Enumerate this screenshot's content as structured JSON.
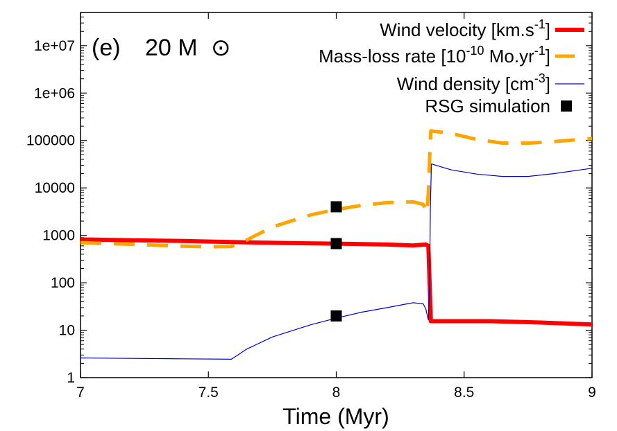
{
  "chart_data": {
    "type": "line",
    "panel_label": "(e)",
    "panel_mass": "20 M",
    "panel_symbol": "⊙",
    "xlabel": "Time (Myr)",
    "ylabel": "",
    "xlim": [
      7,
      9
    ],
    "ylim": [
      1,
      50000000
    ],
    "yscale": "log",
    "grid": false,
    "legend_position": "top-right",
    "x_ticks": [
      "7",
      "7.5",
      "8",
      "8.5",
      "9"
    ],
    "y_ticks": [
      "1",
      "10",
      "100",
      "1000",
      "10000",
      "100000",
      "1e+06",
      "1e+07"
    ],
    "series": [
      {
        "name": "Wind velocity [km.s-1]",
        "legend_main": "Wind velocity [km.s",
        "legend_sup": "-1",
        "legend_tail": "]",
        "color": "#ff0000",
        "style": "solid-thick",
        "points": [
          [
            7.0,
            820
          ],
          [
            7.2,
            790
          ],
          [
            7.4,
            760
          ],
          [
            7.6,
            720
          ],
          [
            7.8,
            690
          ],
          [
            8.0,
            670
          ],
          [
            8.2,
            640
          ],
          [
            8.3,
            610
          ],
          [
            8.35,
            640
          ],
          [
            8.36,
            600
          ],
          [
            8.365,
            100
          ],
          [
            8.37,
            15.5
          ],
          [
            8.4,
            15.5
          ],
          [
            8.6,
            15.5
          ],
          [
            8.8,
            14.5
          ],
          [
            9.0,
            13.2
          ]
        ]
      },
      {
        "name": "Mass-loss rate [10-10 Mo.yr-1]",
        "legend_main": "Mass-loss rate [10",
        "legend_sup": "-10",
        "legend_mid": " Mo.yr",
        "legend_sup2": "-1",
        "legend_tail": "]",
        "color": "#ffa500",
        "style": "dashed",
        "points": [
          [
            7.0,
            700
          ],
          [
            7.2,
            650
          ],
          [
            7.4,
            590
          ],
          [
            7.5,
            575
          ],
          [
            7.59,
            580
          ],
          [
            7.65,
            800
          ],
          [
            7.75,
            1500
          ],
          [
            7.9,
            2700
          ],
          [
            8.0,
            3500
          ],
          [
            8.1,
            4300
          ],
          [
            8.2,
            4900
          ],
          [
            8.3,
            5100
          ],
          [
            8.34,
            4500
          ],
          [
            8.355,
            3000
          ],
          [
            8.36,
            8000
          ],
          [
            8.365,
            40000
          ],
          [
            8.37,
            160000
          ],
          [
            8.45,
            140000
          ],
          [
            8.55,
            105000
          ],
          [
            8.65,
            88000
          ],
          [
            8.75,
            88000
          ],
          [
            8.85,
            95000
          ],
          [
            9.0,
            110000
          ]
        ]
      },
      {
        "name": "Wind density [cm-3]",
        "legend_main": "Wind density [cm",
        "legend_sup": "-3",
        "legend_tail": "]",
        "color": "#0000cc",
        "style": "solid-thin",
        "points": [
          [
            7.0,
            2.6
          ],
          [
            7.2,
            2.55
          ],
          [
            7.4,
            2.5
          ],
          [
            7.59,
            2.45
          ],
          [
            7.65,
            4.0
          ],
          [
            7.75,
            7.2
          ],
          [
            7.9,
            13
          ],
          [
            8.0,
            18
          ],
          [
            8.1,
            24
          ],
          [
            8.2,
            30
          ],
          [
            8.3,
            38
          ],
          [
            8.34,
            36
          ],
          [
            8.35,
            28
          ],
          [
            8.36,
            16.5
          ],
          [
            8.365,
            100
          ],
          [
            8.368,
            4000
          ],
          [
            8.372,
            32000
          ],
          [
            8.45,
            24000
          ],
          [
            8.55,
            19500
          ],
          [
            8.65,
            17500
          ],
          [
            8.75,
            17500
          ],
          [
            8.85,
            20000
          ],
          [
            9.0,
            26000
          ]
        ]
      },
      {
        "name": "RSG simulation",
        "legend_main": "RSG simulation",
        "color": "#000000",
        "style": "square-markers",
        "points": [
          [
            8.0,
            4000
          ],
          [
            8.0,
            670
          ],
          [
            8.0,
            20
          ]
        ]
      }
    ]
  }
}
